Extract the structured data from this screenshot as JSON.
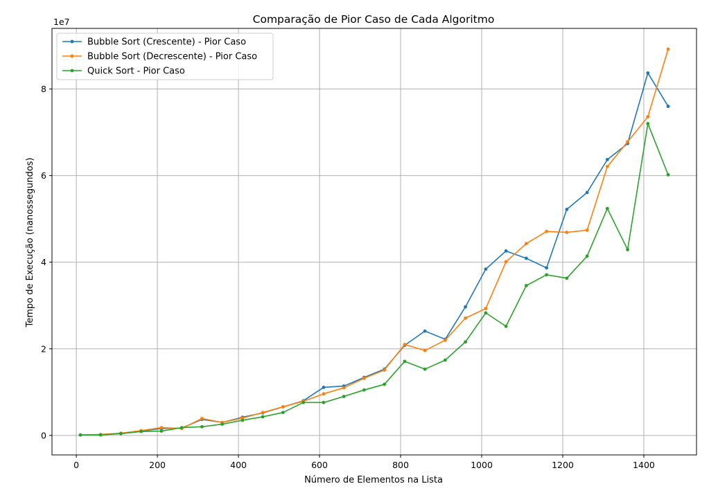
{
  "chart_data": {
    "type": "line",
    "title": "Comparação de Pior Caso de Cada Algoritmo",
    "xlabel": "Número de Elementos na Lista",
    "ylabel": "Tempo de Execução (nanossegundos)",
    "y_offset_label": "1e7",
    "xlim": [
      -60,
      1530
    ],
    "ylim": [
      -4.5,
      94
    ],
    "y_scale_factor": 10000000,
    "xticks": [
      0,
      200,
      400,
      600,
      800,
      1000,
      1200,
      1400
    ],
    "xtick_labels": [
      "0",
      "200",
      "400",
      "600",
      "800",
      "1000",
      "1200",
      "1400"
    ],
    "yticks": [
      0,
      20,
      40,
      60,
      80
    ],
    "ytick_labels": [
      "0",
      "2",
      "4",
      "6",
      "8"
    ],
    "grid": true,
    "legend_position": "upper-left",
    "x": [
      10,
      60,
      110,
      160,
      210,
      260,
      310,
      360,
      410,
      460,
      510,
      560,
      610,
      660,
      710,
      760,
      810,
      860,
      910,
      960,
      1010,
      1060,
      1110,
      1160,
      1210,
      1260,
      1310,
      1360,
      1410,
      1460
    ],
    "series": [
      {
        "name": "Bubble Sort (Crescente) - Pior Caso",
        "color": "#1f77b4",
        "values": [
          0.1,
          0.2,
          0.5,
          1.0,
          1.6,
          1.7,
          3.7,
          3.0,
          4.2,
          5.2,
          6.6,
          8.0,
          11.1,
          11.4,
          13.4,
          15.3,
          20.8,
          24.1,
          22.2,
          29.7,
          38.4,
          42.6,
          40.9,
          38.7,
          52.2,
          56.1,
          63.7,
          67.4,
          83.7,
          76.0
        ]
      },
      {
        "name": "Bubble Sort (Decrescente) - Pior Caso",
        "color": "#ff7f0e",
        "values": [
          0.1,
          0.2,
          0.5,
          1.1,
          1.8,
          1.6,
          3.9,
          3.0,
          4.0,
          5.3,
          6.6,
          7.9,
          9.6,
          11.0,
          13.2,
          15.1,
          21.0,
          19.6,
          22.0,
          27.1,
          29.3,
          40.1,
          44.3,
          47.1,
          46.9,
          47.4,
          62.1,
          67.8,
          73.6,
          89.2
        ]
      },
      {
        "name": "Quick Sort - Pior Caso",
        "color": "#2ca02c",
        "values": [
          0.1,
          0.1,
          0.4,
          0.9,
          1.0,
          1.8,
          2.0,
          2.6,
          3.5,
          4.3,
          5.3,
          7.6,
          7.6,
          9.0,
          10.5,
          11.8,
          17.1,
          15.3,
          17.4,
          21.6,
          28.3,
          25.2,
          34.6,
          37.1,
          36.3,
          41.4,
          52.4,
          42.9,
          72.0,
          60.2
        ]
      }
    ]
  }
}
